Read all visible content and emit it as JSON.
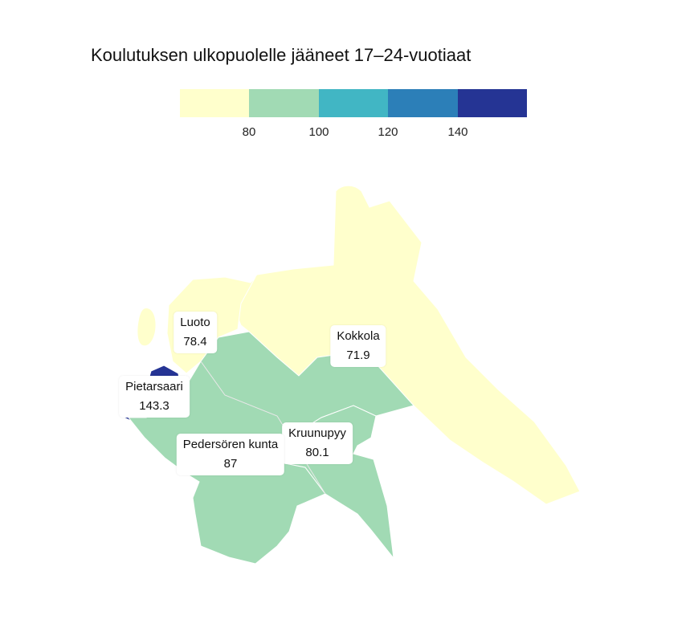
{
  "title": "Koulutuksen ulkopuolelle jääneet 17–24-vuotiaat",
  "legend": {
    "colors": [
      "#ffffcc",
      "#a1dab4",
      "#41b6c4",
      "#2c7fb8",
      "#253494"
    ],
    "ticks": [
      "80",
      "100",
      "120",
      "140"
    ]
  },
  "regions": [
    {
      "name": "Kokkola",
      "value": "71.9",
      "color": "#ffffcc"
    },
    {
      "name": "Luoto",
      "value": "78.4",
      "color": "#ffffcc"
    },
    {
      "name": "Pietarsaari",
      "value": "143.3",
      "color": "#253494"
    },
    {
      "name": "Pedersören kunta",
      "value": "87",
      "color": "#a1dab4"
    },
    {
      "name": "Kruunupyy",
      "value": "80.1",
      "color": "#a1dab4"
    }
  ]
}
